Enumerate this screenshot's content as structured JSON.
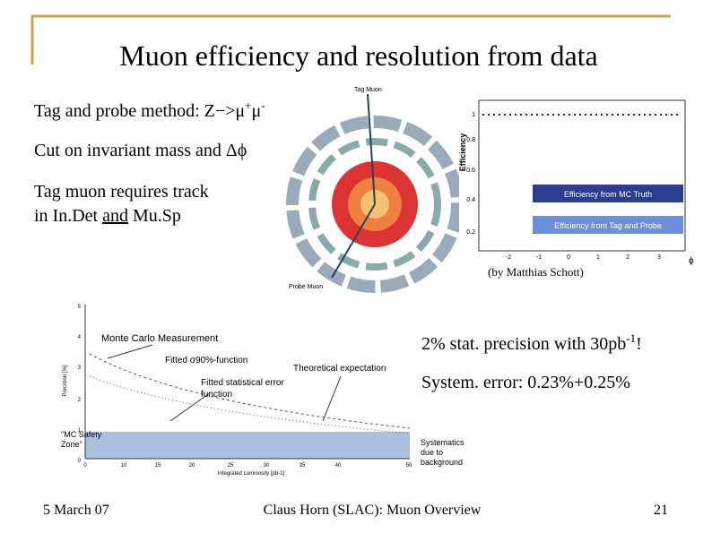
{
  "title": "Muon efficiency and resolution from data",
  "bullets": [
    {
      "parts": [
        "Tag and probe method:  Z−>μ",
        "+",
        "μ",
        "-"
      ]
    },
    {
      "parts": [
        "Cut on invariant mass and Δϕ"
      ]
    },
    {
      "lines": [
        "Tag muon requires track",
        "in In.Det ",
        "and",
        " Mu.Sp"
      ]
    }
  ],
  "detector_figure": {
    "tag_label": "Tag Muon",
    "probe_label": "Probe Muon"
  },
  "efficiency_figure": {
    "y_axis_label": "Efficiency",
    "x_axis_label": "ϕ",
    "yticks": [
      "0.2",
      "0.4",
      "0.6",
      "0.8",
      "1"
    ],
    "xticks": [
      "-2",
      "-1",
      "0",
      "1",
      "2",
      "3"
    ],
    "legend": [
      "Efficiency from MC Truth",
      "Efficiency from Tag and Probe"
    ],
    "credit": "(by Matthias Schott)"
  },
  "luminosity_figure": {
    "y_axis_label": "Precision [%]",
    "x_axis_label": "Integrated Luminosity [pb-1]",
    "yticks": [
      "0",
      "1",
      "2",
      "3",
      "4",
      "5"
    ],
    "xticks": [
      "0",
      "10",
      "15",
      "20",
      "25",
      "30",
      "35",
      "40",
      "50"
    ],
    "annotations": [
      "Monte Carlo Measurement",
      "Fitted σ90%-function",
      "Theoretical expectation",
      "Fitted statistical error",
      "function",
      "\"MC Safety",
      "Zone\"",
      "Systematics",
      "due to",
      "background"
    ]
  },
  "right_notes": [
    {
      "parts": [
        "2% stat. precision with 30pb",
        "-1",
        "!"
      ]
    },
    {
      "parts": [
        "System. error: 0.23%+0.25%"
      ]
    }
  ],
  "footer": {
    "date": "5 March 07",
    "center": "Claus Horn (SLAC): Muon Overview",
    "page": "21"
  }
}
